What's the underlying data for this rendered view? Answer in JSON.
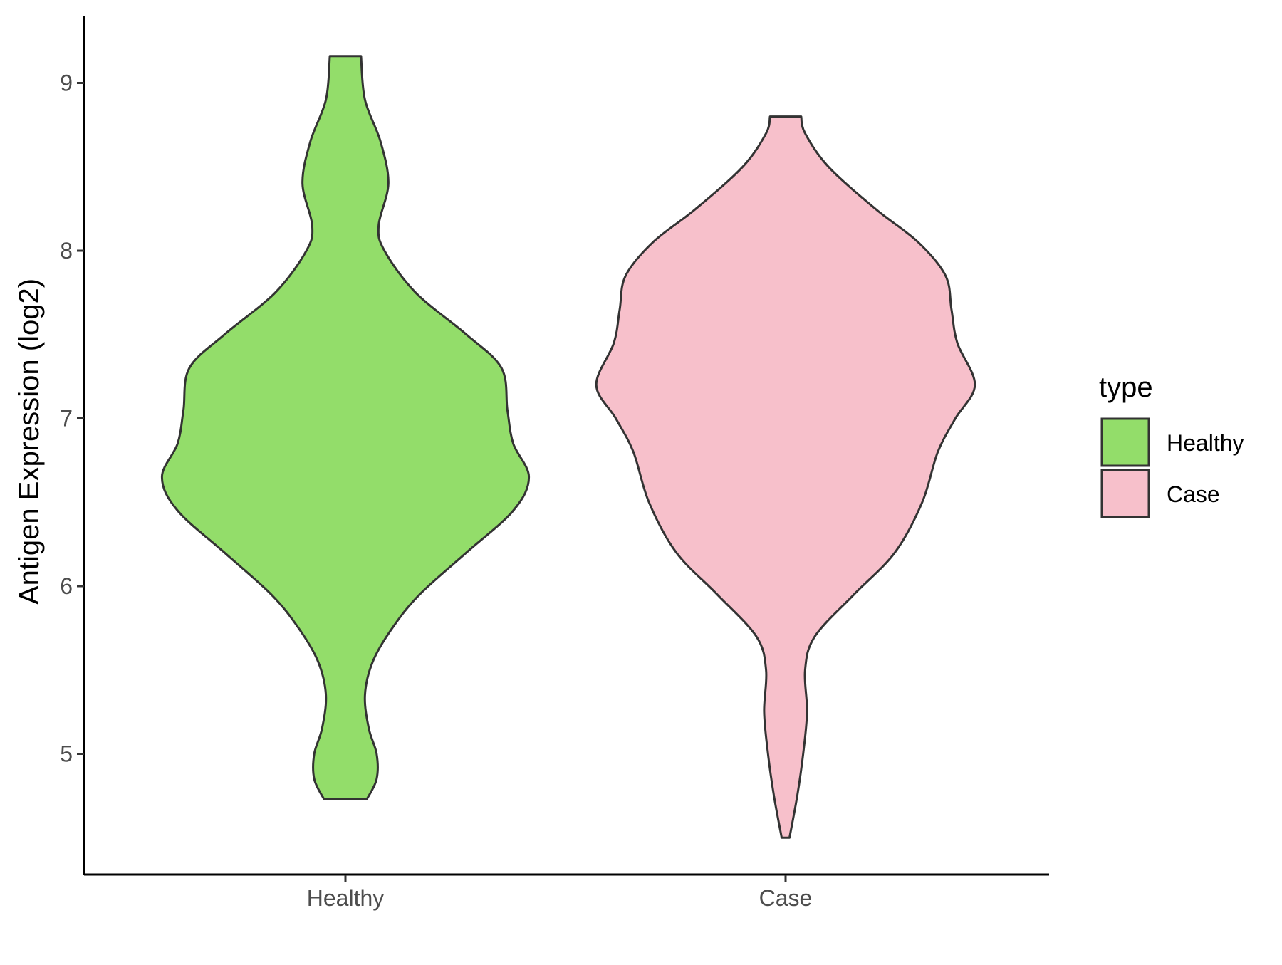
{
  "chart_data": {
    "type": "violin",
    "title": "",
    "xlabel": "",
    "ylabel": "Antigen Expression (log2)",
    "ylim": [
      4.3,
      9.4
    ],
    "yticks": [
      5,
      6,
      7,
      8,
      9
    ],
    "grid": false,
    "categories": [
      "Healthy",
      "Case"
    ],
    "legend": {
      "title": "type",
      "position": "right",
      "entries": [
        {
          "label": "Healthy",
          "color": "#93DD6A"
        },
        {
          "label": "Case",
          "color": "#F7C0CB"
        }
      ]
    },
    "series": [
      {
        "category": "Healthy",
        "color": "#93DD6A",
        "min": 4.73,
        "max": 9.16,
        "density_profile": [
          [
            4.73,
            0.11
          ],
          [
            4.85,
            0.16
          ],
          [
            5.0,
            0.16
          ],
          [
            5.15,
            0.12
          ],
          [
            5.35,
            0.1
          ],
          [
            5.55,
            0.14
          ],
          [
            5.75,
            0.24
          ],
          [
            5.95,
            0.38
          ],
          [
            6.2,
            0.62
          ],
          [
            6.45,
            0.86
          ],
          [
            6.65,
            0.94
          ],
          [
            6.85,
            0.86
          ],
          [
            7.05,
            0.83
          ],
          [
            7.3,
            0.8
          ],
          [
            7.5,
            0.62
          ],
          [
            7.75,
            0.36
          ],
          [
            8.0,
            0.2
          ],
          [
            8.15,
            0.17
          ],
          [
            8.4,
            0.22
          ],
          [
            8.65,
            0.18
          ],
          [
            8.9,
            0.1
          ],
          [
            9.16,
            0.08
          ]
        ]
      },
      {
        "category": "Case",
        "color": "#F7C0CB",
        "min": 4.5,
        "max": 8.8,
        "density_profile": [
          [
            4.5,
            0.02
          ],
          [
            4.75,
            0.06
          ],
          [
            5.0,
            0.09
          ],
          [
            5.25,
            0.11
          ],
          [
            5.5,
            0.1
          ],
          [
            5.7,
            0.15
          ],
          [
            5.95,
            0.35
          ],
          [
            6.2,
            0.56
          ],
          [
            6.5,
            0.7
          ],
          [
            6.8,
            0.78
          ],
          [
            7.0,
            0.87
          ],
          [
            7.2,
            0.97
          ],
          [
            7.45,
            0.88
          ],
          [
            7.65,
            0.85
          ],
          [
            7.85,
            0.82
          ],
          [
            8.05,
            0.68
          ],
          [
            8.25,
            0.46
          ],
          [
            8.5,
            0.22
          ],
          [
            8.7,
            0.1
          ],
          [
            8.8,
            0.08
          ]
        ]
      }
    ]
  }
}
